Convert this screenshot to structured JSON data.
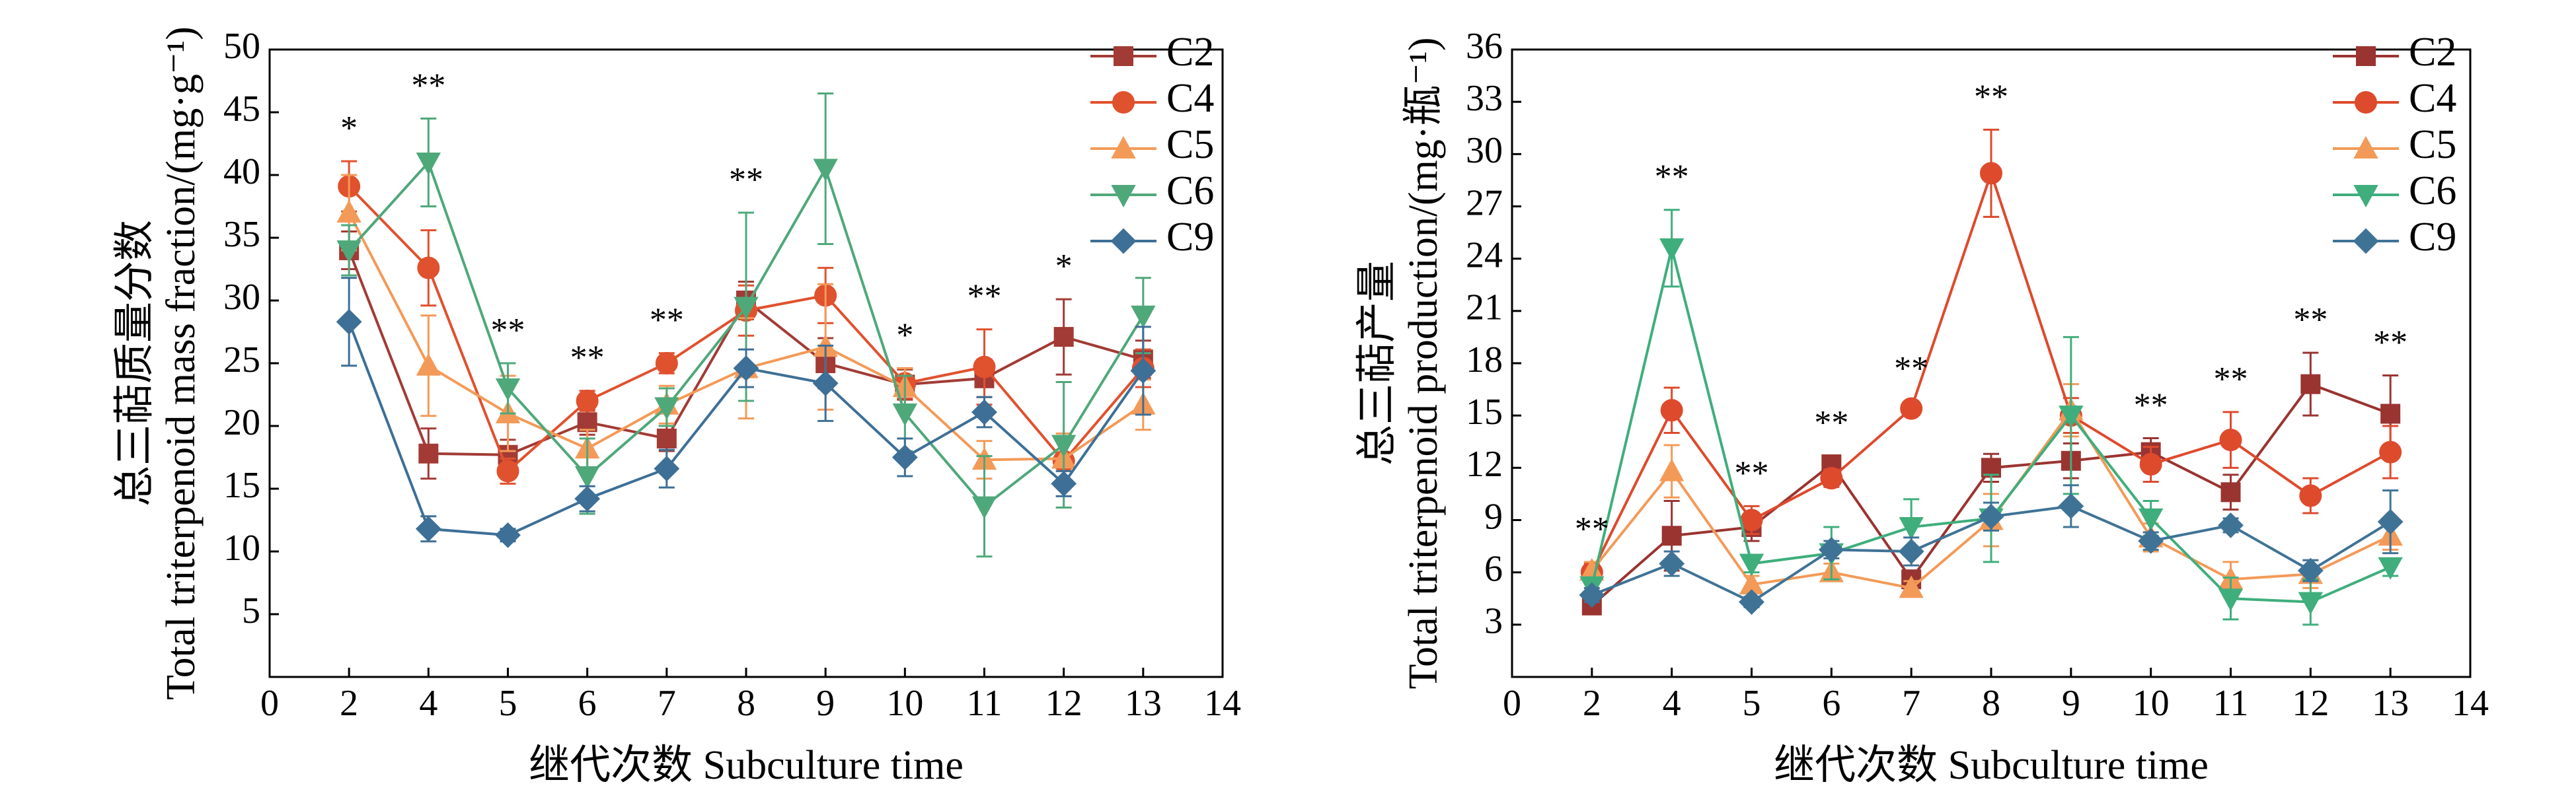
{
  "chart_data": [
    {
      "type": "line",
      "ylabel": [
        "总三萜质量分数",
        "Total triterpenoid mass fraction/(mg·g⁻¹)"
      ],
      "xlabel": "继代次数 Subculture time",
      "categories": [
        "0",
        "2",
        "4",
        "5",
        "6",
        "7",
        "8",
        "9",
        "10",
        "11",
        "12",
        "13",
        "14"
      ],
      "ylim": [
        0,
        50
      ],
      "yticks": [
        5,
        10,
        15,
        20,
        25,
        30,
        35,
        40,
        45,
        50
      ],
      "significance": [
        null,
        "*",
        "**",
        "**",
        "**",
        "**",
        "**",
        null,
        "*",
        "**",
        "*",
        null,
        null
      ],
      "series": [
        {
          "name": "C2",
          "color": "#a23b35",
          "marker": "square",
          "values": [
            null,
            34,
            17.8,
            17.7,
            20.3,
            19,
            30,
            25,
            23.3,
            23.8,
            27.1,
            25.3,
            null
          ],
          "errors": [
            null,
            1.5,
            2,
            1.2,
            1,
            1,
            1.5,
            2,
            1.2,
            1.5,
            3,
            1.5,
            null
          ]
        },
        {
          "name": "C4",
          "color": "#e0512e",
          "marker": "circle",
          "values": [
            null,
            39.1,
            32.6,
            16.4,
            22,
            25,
            29.2,
            30.4,
            23.4,
            24.7,
            17.2,
            24.6,
            null
          ],
          "errors": [
            null,
            2,
            3,
            1,
            0.8,
            0.8,
            2,
            2.2,
            1.2,
            3,
            2,
            1.5,
            null
          ]
        },
        {
          "name": "C5",
          "color": "#f39a58",
          "marker": "triangle",
          "values": [
            null,
            37,
            24.8,
            21,
            18.2,
            21.7,
            24.6,
            26.3,
            23.1,
            17.3,
            17.4,
            21.7,
            null
          ],
          "errors": [
            null,
            3,
            4,
            3,
            1.5,
            1.5,
            4,
            5,
            1.5,
            1.5,
            2,
            2,
            null
          ]
        },
        {
          "name": "C6",
          "color": "#4fa87a",
          "marker": "triangle-down",
          "values": [
            null,
            34,
            41,
            23,
            16,
            21.5,
            29.5,
            40.5,
            21,
            13.6,
            18.5,
            28.8,
            null
          ],
          "errors": [
            null,
            2,
            3.5,
            2,
            3,
            1.5,
            7.5,
            6,
            3,
            4,
            5,
            3,
            null
          ]
        },
        {
          "name": "C9",
          "color": "#3e6f96",
          "marker": "diamond",
          "values": [
            null,
            28.3,
            11.8,
            11.3,
            14.2,
            16.6,
            24.6,
            23.4,
            17.5,
            21.1,
            15.4,
            24.4,
            null
          ],
          "errors": [
            null,
            3.5,
            1,
            0.5,
            1,
            1.5,
            1.5,
            3,
            1.5,
            1.2,
            1,
            3.5,
            null
          ]
        }
      ]
    },
    {
      "type": "line",
      "ylabel": [
        "总三萜产量",
        "Total triterpenoid production/(mg·瓶⁻¹)"
      ],
      "xlabel": "继代次数 Subculture time",
      "categories": [
        "0",
        "2",
        "4",
        "5",
        "6",
        "7",
        "8",
        "9",
        "10",
        "11",
        "12",
        "13",
        "14"
      ],
      "ylim": [
        0,
        36
      ],
      "yticks": [
        3,
        6,
        9,
        12,
        15,
        18,
        21,
        24,
        27,
        30,
        33,
        36
      ],
      "significance": [
        null,
        "**",
        "**",
        "**",
        "**",
        "**",
        "**",
        null,
        "**",
        "**",
        "**",
        "**",
        null
      ],
      "series": [
        {
          "name": "C2",
          "color": "#9a3431",
          "marker": "square",
          "values": [
            null,
            4.1,
            8.1,
            8.6,
            12.2,
            5.6,
            12,
            12.4,
            12.9,
            10.6,
            16.8,
            15.1,
            null
          ],
          "errors": [
            null,
            0.3,
            2,
            0.8,
            0.5,
            0.5,
            0.8,
            1,
            0.8,
            1,
            1.8,
            2.2,
            null
          ]
        },
        {
          "name": "C4",
          "color": "#de4a2c",
          "marker": "circle",
          "values": [
            null,
            6,
            15.3,
            9,
            11.4,
            15.4,
            28.9,
            15,
            12.2,
            13.6,
            10.4,
            12.9,
            null
          ],
          "errors": [
            null,
            0.5,
            1.3,
            0.8,
            0.5,
            0.4,
            2.5,
            1,
            1,
            1.6,
            1,
            1.5,
            null
          ]
        },
        {
          "name": "C5",
          "color": "#f39a58",
          "marker": "triangle",
          "values": [
            null,
            6.1,
            11.8,
            5.3,
            6,
            5.1,
            9,
            15.3,
            8,
            5.6,
            5.9,
            8.1,
            null
          ],
          "errors": [
            null,
            0.5,
            1.5,
            0.5,
            0.5,
            0.4,
            1.5,
            1.5,
            0.8,
            1,
            0.8,
            0.8,
            null
          ]
        },
        {
          "name": "C6",
          "color": "#3fae7c",
          "marker": "triangle-down",
          "values": [
            null,
            5.2,
            24.6,
            6.5,
            7.1,
            8.6,
            9.1,
            15,
            9.1,
            4.5,
            4.3,
            6.3,
            null
          ],
          "errors": [
            null,
            0.5,
            2.2,
            0.5,
            1.5,
            1.6,
            2.5,
            4.5,
            1,
            1.2,
            1.3,
            0.5,
            null
          ]
        },
        {
          "name": "C9",
          "color": "#3f7396",
          "marker": "diamond",
          "values": [
            null,
            4.7,
            6.5,
            4.3,
            7.3,
            7.2,
            9.2,
            9.8,
            7.8,
            8.7,
            6.1,
            8.9,
            null
          ],
          "errors": [
            null,
            0.4,
            0.7,
            0.3,
            0.5,
            0.8,
            0.8,
            1.2,
            0.5,
            0.4,
            0.6,
            1.8,
            null
          ]
        }
      ]
    }
  ]
}
